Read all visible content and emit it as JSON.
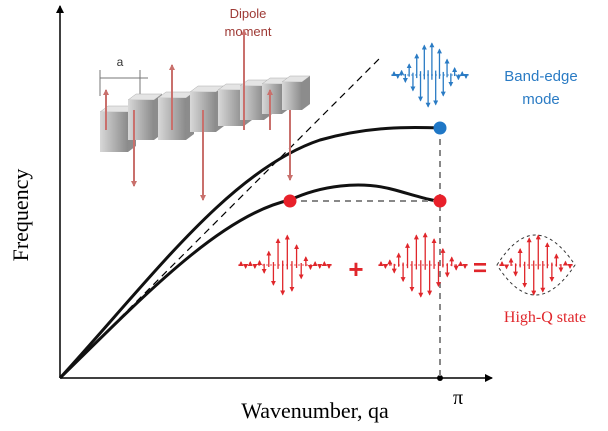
{
  "axes": {
    "x_label": "Wavenumber, qa",
    "y_label": "Frequency",
    "x_end": "π"
  },
  "inset": {
    "lattice_constant": "a",
    "dipole_label": [
      "Dipole",
      "moment"
    ]
  },
  "band_edge": {
    "label": [
      "Band-edge",
      "mode"
    ]
  },
  "combination": {
    "plus": "+",
    "equals": "=",
    "result": "High-Q state"
  }
}
